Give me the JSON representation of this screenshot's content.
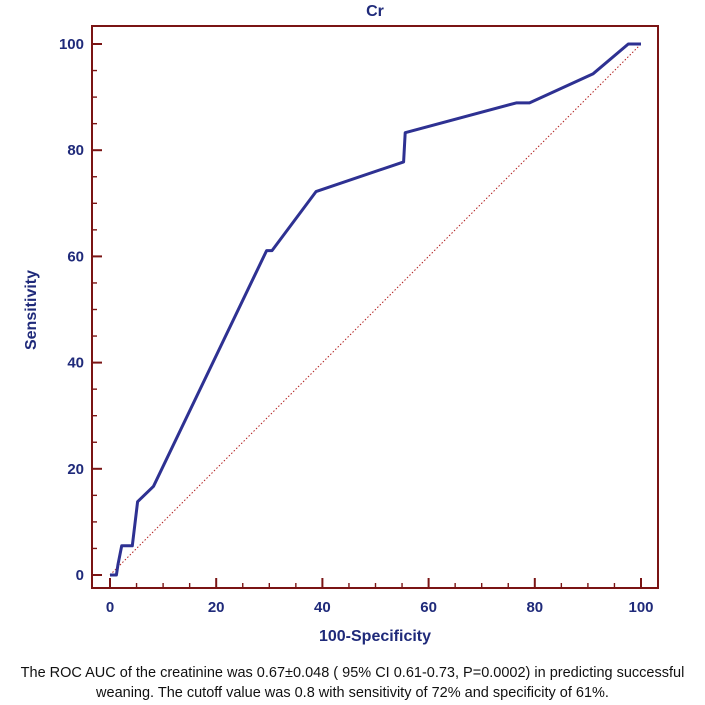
{
  "colors": {
    "frame": "#7a1414",
    "roc_line": "#2e3192",
    "axis_text": "#1f2a7a",
    "diagonal": "#b22222"
  },
  "chart_data": {
    "type": "line",
    "title": "Cr",
    "xlabel": "100-Specificity",
    "ylabel": "Sensitivity",
    "xlim": [
      0,
      100
    ],
    "ylim": [
      0,
      100
    ],
    "xticks": [
      0,
      20,
      40,
      60,
      80,
      100
    ],
    "yticks": [
      0,
      20,
      40,
      60,
      80,
      100
    ],
    "xtick_labels": [
      "0",
      "20",
      "40",
      "60",
      "80",
      "100"
    ],
    "ytick_labels": [
      "0",
      "20",
      "40",
      "60",
      "80",
      "100"
    ],
    "grid": false,
    "series": [
      {
        "name": "Cr ROC curve",
        "x": [
          0,
          1.2,
          1.5,
          2.2,
          4.2,
          5.2,
          8.2,
          29.5,
          30.5,
          38.8,
          55.3,
          55.6,
          76.5,
          79,
          91,
          97.6,
          100
        ],
        "y": [
          0,
          0,
          2,
          5.5,
          5.5,
          13.8,
          16.7,
          61.1,
          61.1,
          72.2,
          77.8,
          83.3,
          88.9,
          88.9,
          94.4,
          100,
          100
        ]
      },
      {
        "name": "Reference line",
        "style": "dotted",
        "x": [
          0,
          100
        ],
        "y": [
          0,
          100
        ]
      }
    ]
  },
  "caption": {
    "line1": "The ROC AUC of the creatinine was 0.67±0.048 ( 95% CI 0.61-0.73, P=0.0002) in predicting successful",
    "line2": "weaning. The cutoff value was 0.8 with sensitivity of 72% and specificity of 61%."
  }
}
